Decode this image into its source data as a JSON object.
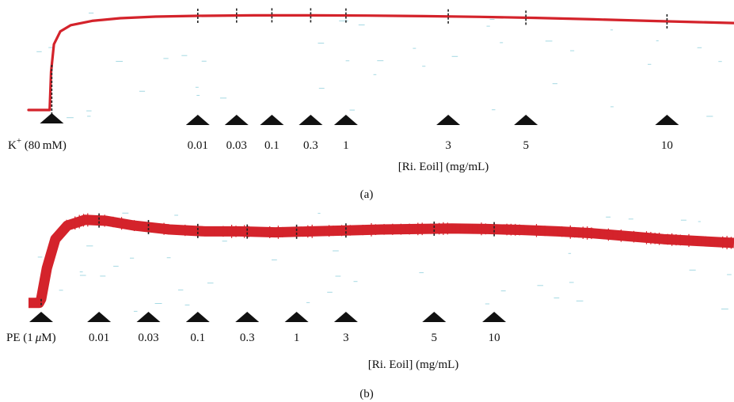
{
  "figure": {
    "colors": {
      "trace": "#d4232b",
      "marker": "#111111",
      "noise": "#8fd0dc",
      "tick": "#222222"
    }
  },
  "chart_data": [
    {
      "type": "line",
      "panel_label": "(a)",
      "stimulus": {
        "label_main": "K",
        "label_sup": "+",
        "label_rest": " (80 mM)"
      },
      "xlabel": "[Ri. Eoil] (mg/mL)",
      "concentrations": [
        "0.01",
        "0.03",
        "0.1",
        "0.3",
        "1",
        "3",
        "5",
        "10"
      ],
      "series": [
        {
          "trace_points": [
            [
              0,
              0.06
            ],
            [
              3,
              0.06
            ],
            [
              3.2,
              0.42
            ],
            [
              3.6,
              0.68
            ],
            [
              4.5,
              0.8
            ],
            [
              6,
              0.86
            ],
            [
              9,
              0.9
            ],
            [
              13,
              0.925
            ],
            [
              18,
              0.94
            ],
            [
              24,
              0.948
            ],
            [
              32,
              0.952
            ],
            [
              40,
              0.952
            ],
            [
              48,
              0.95
            ],
            [
              56,
              0.945
            ],
            [
              64,
              0.938
            ],
            [
              72,
              0.928
            ],
            [
              80,
              0.915
            ],
            [
              88,
              0.9
            ],
            [
              95,
              0.888
            ],
            [
              100,
              0.88
            ]
          ],
          "stimulus_time": 3.3,
          "dose_times": [
            24,
            29.5,
            34.5,
            40,
            45,
            59.5,
            70.5,
            90.5
          ]
        }
      ]
    },
    {
      "type": "line",
      "panel_label": "(b)",
      "stimulus": {
        "label_main": "PE (1 ",
        "label_mu": "μ",
        "label_rest": "M)"
      },
      "xlabel": "[Ri. Eoil] (mg/mL)",
      "concentrations": [
        "0.01",
        "0.03",
        "0.1",
        "0.3",
        "1",
        "3",
        "5",
        "10"
      ],
      "series": [
        {
          "trace_points": [
            [
              0,
              0.06
            ],
            [
              1.5,
              0.06
            ],
            [
              1.8,
              0.1
            ],
            [
              2.6,
              0.42
            ],
            [
              3.8,
              0.72
            ],
            [
              5.5,
              0.86
            ],
            [
              8,
              0.92
            ],
            [
              11,
              0.91
            ],
            [
              15,
              0.86
            ],
            [
              20,
              0.82
            ],
            [
              25,
              0.8
            ],
            [
              30,
              0.8
            ],
            [
              35,
              0.79
            ],
            [
              40,
              0.8
            ],
            [
              45,
              0.81
            ],
            [
              50,
              0.82
            ],
            [
              55,
              0.825
            ],
            [
              60,
              0.83
            ],
            [
              65,
              0.825
            ],
            [
              70,
              0.815
            ],
            [
              75,
              0.8
            ],
            [
              80,
              0.78
            ],
            [
              85,
              0.75
            ],
            [
              90,
              0.72
            ],
            [
              95,
              0.7
            ],
            [
              100,
              0.68
            ]
          ],
          "stimulus_time": 1.8,
          "dose_times": [
            10,
            17,
            24,
            31,
            38,
            45,
            57.5,
            66
          ]
        }
      ]
    }
  ]
}
